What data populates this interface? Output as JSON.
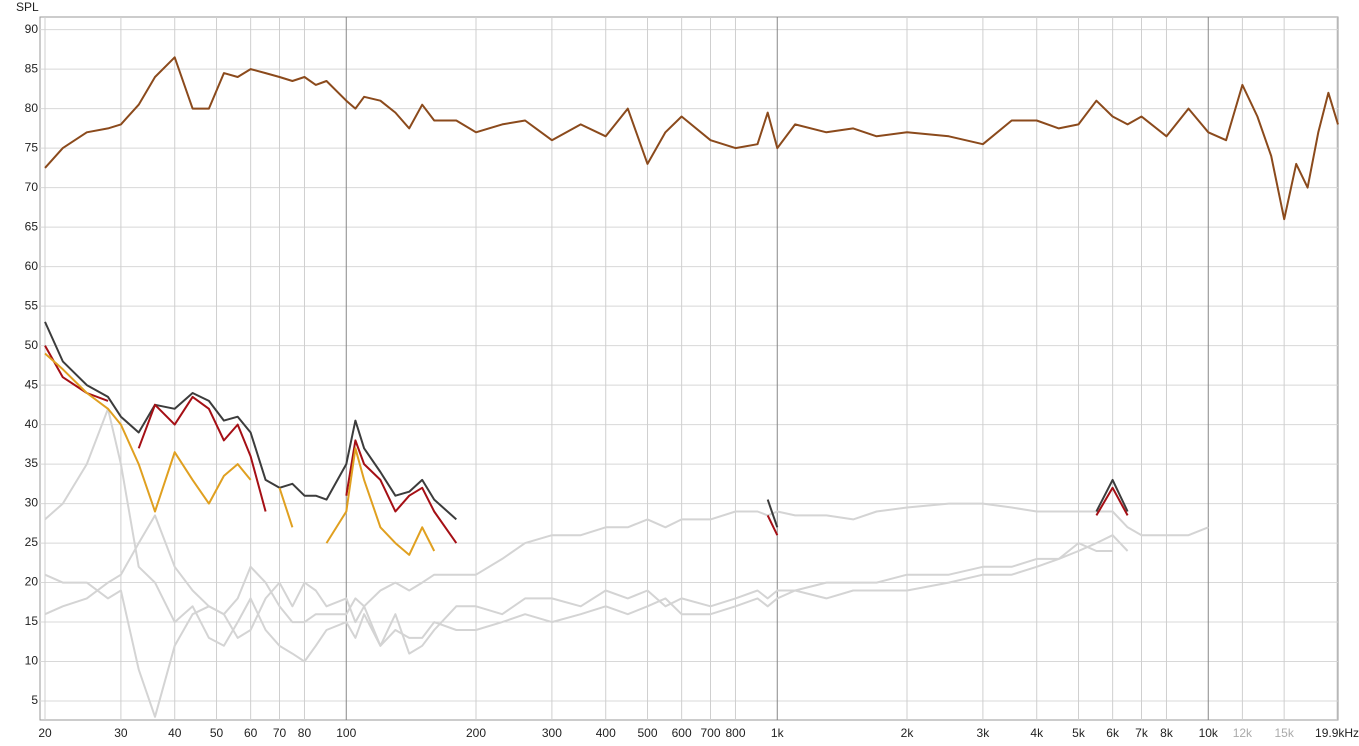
{
  "chart_data": {
    "type": "line",
    "ylabel": "SPL",
    "xscale": "log",
    "grid": true,
    "x": [
      20,
      22,
      25,
      28,
      30,
      33,
      36,
      40,
      44,
      48,
      52,
      56,
      60,
      65,
      70,
      75,
      80,
      85,
      90,
      100,
      105,
      110,
      120,
      130,
      140,
      150,
      160,
      180,
      200,
      230,
      260,
      300,
      350,
      400,
      450,
      500,
      550,
      600,
      700,
      800,
      900,
      950,
      1000,
      1100,
      1300,
      1500,
      1700,
      2000,
      2500,
      3000,
      3500,
      4000,
      4500,
      5000,
      5500,
      6000,
      6500,
      7000,
      8000,
      9000,
      10000,
      11000,
      12000,
      13000,
      14000,
      15000,
      16000,
      17000,
      18000,
      19000,
      20000
    ],
    "xlim": [
      20,
      20000
    ],
    "ylim": [
      2.6,
      91.6
    ],
    "xticks": [
      20,
      30,
      40,
      50,
      60,
      70,
      80,
      100,
      200,
      300,
      400,
      500,
      600,
      700,
      800,
      {
        "value": 1000,
        "label": "1k"
      },
      {
        "value": 2000,
        "label": "2k"
      },
      {
        "value": 3000,
        "label": "3k"
      },
      {
        "value": 4000,
        "label": "4k"
      },
      {
        "value": 5000,
        "label": "5k"
      },
      {
        "value": 6000,
        "label": "6k"
      },
      {
        "value": 7000,
        "label": "7k"
      },
      {
        "value": 8000,
        "label": "8k"
      },
      {
        "value": 10000,
        "label": "10k"
      },
      {
        "value": 12000,
        "label": "12k"
      },
      {
        "value": 15000,
        "label": "15k"
      },
      {
        "value": 19900,
        "label": "19.9kHz"
      }
    ],
    "yticks": [
      5,
      10,
      15,
      20,
      25,
      30,
      35,
      40,
      45,
      50,
      55,
      60,
      65,
      70,
      75,
      80,
      85,
      90
    ],
    "series": [
      {
        "color": "#d4d4d4",
        "values": [
          16,
          17,
          18,
          20,
          21,
          25,
          28.5,
          22,
          19,
          17,
          16,
          18,
          22,
          20,
          17,
          15,
          15,
          16,
          16,
          16,
          18,
          17,
          19,
          20,
          19,
          20,
          21,
          21,
          21,
          23,
          25,
          26,
          26,
          27,
          27,
          28,
          27,
          28,
          28,
          29,
          29,
          28.5,
          29,
          28.5,
          28.5,
          28,
          29,
          29.5,
          30,
          30,
          29.5,
          29,
          29,
          29,
          29,
          29,
          27,
          26,
          26,
          26,
          27,
          null,
          null,
          null,
          null,
          null,
          null,
          null,
          null,
          null,
          null
        ]
      },
      {
        "color": "#d4d4d4",
        "values": [
          28,
          30,
          35,
          42,
          35,
          22,
          20,
          15,
          17,
          13,
          12,
          15,
          18,
          14,
          12,
          11,
          10,
          12,
          14,
          15,
          13,
          16,
          12,
          14,
          13,
          13,
          15,
          14,
          14,
          15,
          16,
          15,
          16,
          17,
          16,
          17,
          18,
          16,
          16,
          17,
          18,
          17,
          18,
          19,
          18,
          19,
          19,
          19,
          20,
          21,
          21,
          22,
          23,
          24,
          25,
          26,
          24,
          null,
          null,
          null,
          null,
          null,
          null,
          null,
          null,
          null,
          null,
          null,
          null,
          null,
          null
        ]
      },
      {
        "color": "#d4d4d4",
        "values": [
          21,
          20,
          20,
          18,
          19,
          9,
          3,
          12,
          16,
          17,
          16,
          13,
          14,
          18,
          20,
          17,
          20,
          19,
          17,
          18,
          15,
          17,
          12,
          16,
          11,
          12,
          14,
          17,
          17,
          16,
          18,
          18,
          17,
          19,
          18,
          19,
          17,
          18,
          17,
          18,
          19,
          18,
          19,
          19,
          20,
          20,
          20,
          21,
          21,
          22,
          22,
          23,
          23,
          25,
          24,
          24,
          null,
          null,
          null,
          null,
          null,
          null,
          null,
          null,
          null,
          null,
          null,
          null,
          null,
          null,
          null
        ]
      },
      {
        "color": "#3c3c3c",
        "values": [
          53,
          48,
          45,
          43.5,
          41,
          39,
          42.5,
          42,
          44,
          43,
          40.5,
          41,
          39,
          33,
          32,
          32.5,
          31,
          31,
          30.5,
          35,
          40.5,
          37,
          34,
          31,
          31.5,
          33,
          30.5,
          28,
          null,
          null,
          null,
          null,
          null,
          null,
          null,
          null,
          null,
          null,
          null,
          null,
          null,
          30.5,
          27,
          null,
          null,
          null,
          null,
          null,
          null,
          null,
          null,
          null,
          null,
          null,
          29,
          33,
          29,
          null,
          null,
          null,
          null,
          null,
          null,
          null,
          null,
          null,
          null,
          null,
          null,
          null,
          null
        ]
      },
      {
        "color": "#a50f15",
        "values": [
          50,
          46,
          44,
          43,
          null,
          37,
          42.5,
          40,
          43.5,
          42,
          38,
          40,
          36,
          29,
          null,
          null,
          null,
          null,
          null,
          31,
          38,
          35,
          33,
          29,
          31,
          32,
          29,
          25,
          null,
          null,
          null,
          null,
          null,
          null,
          null,
          null,
          null,
          null,
          null,
          null,
          null,
          28.5,
          26,
          null,
          null,
          null,
          null,
          null,
          null,
          null,
          null,
          null,
          null,
          null,
          28.5,
          32,
          28.5,
          null,
          null,
          null,
          null,
          null,
          null,
          null,
          null,
          null,
          null,
          null,
          null,
          null,
          null
        ]
      },
      {
        "color": "#e0a020",
        "values": [
          49,
          47,
          44,
          42,
          40,
          35,
          29,
          36.5,
          33,
          30,
          33.5,
          35,
          33,
          null,
          32,
          27,
          null,
          null,
          25,
          29,
          37,
          33,
          27,
          25,
          23.5,
          27,
          24,
          null,
          null,
          null,
          null,
          null,
          null,
          null,
          null,
          null,
          null,
          null,
          null,
          null,
          null,
          null,
          null,
          null,
          null,
          null,
          null,
          null,
          null,
          null,
          null,
          null,
          null,
          null,
          null,
          null,
          null,
          null,
          null,
          null,
          null,
          null,
          null,
          null,
          null,
          null,
          null,
          null,
          null,
          null,
          null
        ]
      },
      {
        "color": "#8b4a1c",
        "values": [
          72.5,
          75,
          77,
          77.5,
          78,
          80.5,
          84,
          86.5,
          80,
          80,
          84.5,
          84,
          85,
          84.5,
          84,
          83.5,
          84,
          83,
          83.5,
          81,
          80,
          81.5,
          81,
          79.5,
          77.5,
          80.5,
          78.5,
          78.5,
          77,
          78,
          78.5,
          76,
          78,
          76.5,
          80,
          73,
          77,
          79,
          76,
          75,
          75.5,
          79.5,
          75,
          78,
          77,
          77.5,
          76.5,
          77,
          76.5,
          75.5,
          78.5,
          78.5,
          77.5,
          78,
          81,
          79,
          78,
          79,
          76.5,
          80,
          77,
          76,
          83,
          79,
          74,
          66,
          73,
          70,
          77,
          82,
          78
        ]
      }
    ]
  }
}
